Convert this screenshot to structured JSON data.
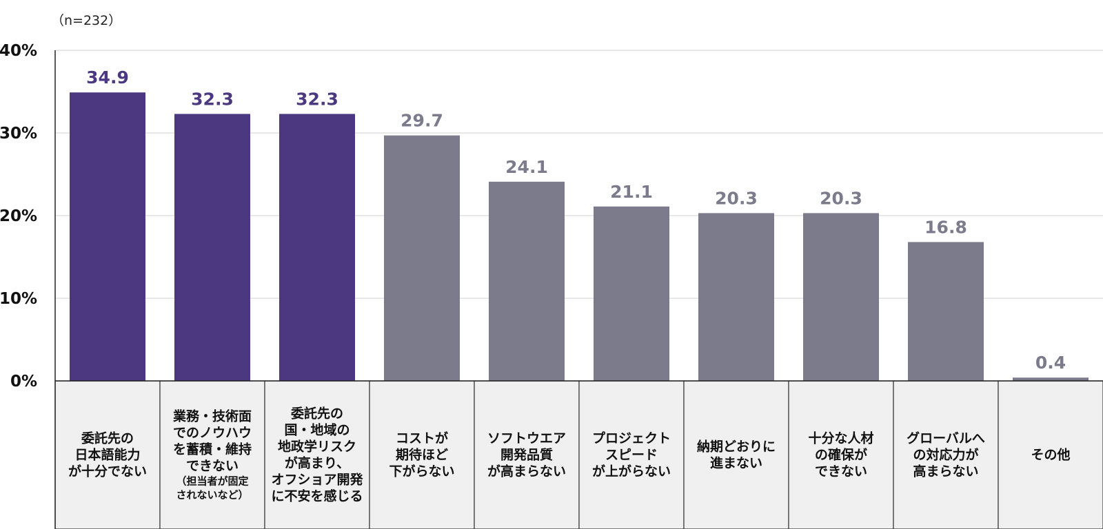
{
  "note": "（n=232）",
  "colors": {
    "highlight": "#4b3880",
    "normal": "#7c7b8c",
    "grid": "#d9d9d9",
    "cell": "#f0f0f0"
  },
  "chart_data": {
    "type": "bar",
    "ylim": [
      0,
      40
    ],
    "yticks": [
      "0%",
      "10%",
      "20%",
      "30%",
      "40%"
    ],
    "grid": true,
    "highlight_count": 3,
    "categories": [
      {
        "lines": [
          "委託先の",
          "日本語能力",
          "が十分でない"
        ],
        "small": []
      },
      {
        "lines": [
          "業務・技術面",
          "でのノウハウ",
          "を蓄積・維持",
          "できない"
        ],
        "small": [
          "（担当者が固定",
          "されないなど）"
        ]
      },
      {
        "lines": [
          "委託先の",
          "国・地域の",
          "地政学リスク",
          "が高まり、",
          "オフショア開発",
          "に不安を感じる"
        ],
        "small": []
      },
      {
        "lines": [
          "コストが",
          "期待ほど",
          "下がらない"
        ],
        "small": []
      },
      {
        "lines": [
          "ソフトウエア",
          "開発品質",
          "が高まらない"
        ],
        "small": []
      },
      {
        "lines": [
          "プロジェクト",
          "スピード",
          "が上がらない"
        ],
        "small": []
      },
      {
        "lines": [
          "納期どおりに",
          "進まない"
        ],
        "small": []
      },
      {
        "lines": [
          "十分な人材",
          "の確保が",
          "できない"
        ],
        "small": []
      },
      {
        "lines": [
          "グローバルへ",
          "の対応力が",
          "高まらない"
        ],
        "small": []
      },
      {
        "lines": [
          "その他"
        ],
        "small": []
      }
    ],
    "values": [
      34.9,
      32.3,
      32.3,
      29.7,
      24.1,
      21.1,
      20.3,
      20.3,
      16.8,
      0.4
    ],
    "value_labels": [
      "34.9",
      "32.3",
      "32.3",
      "29.7",
      "24.1",
      "21.1",
      "20.3",
      "20.3",
      "16.8",
      "0.4"
    ]
  }
}
